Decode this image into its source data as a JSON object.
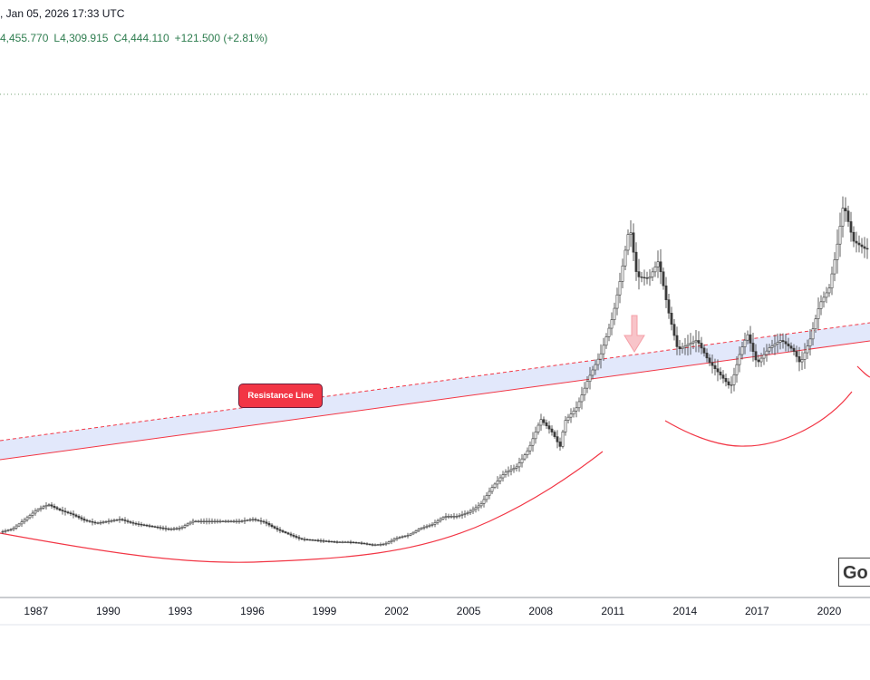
{
  "header": {
    "datetime": ", Jan 05, 2026 17:33 UTC",
    "high": "4,455.770",
    "low": "L4,309.915",
    "close": "C4,444.110",
    "change": "+121.500 (+2.81%)"
  },
  "colors": {
    "up": "#2e7d4f",
    "resistance": "#f23645",
    "band": "#dfe6fb",
    "candle": "#3a3a3a",
    "axis": "#131722"
  },
  "annotations": {
    "resistance_label": "Resistance Line",
    "watermark": "Go"
  },
  "chart_data": {
    "type": "candlestick",
    "title": "",
    "x_axis": {
      "tick_labels": [
        "1987",
        "1990",
        "1993",
        "1996",
        "1999",
        "2002",
        "2005",
        "2008",
        "2011",
        "2014",
        "2017",
        "2020"
      ],
      "range": [
        1985.5,
        2021.7
      ]
    },
    "y_axis": {
      "range": [
        0,
        2650
      ],
      "tick_labels": []
    },
    "price_trace": [
      [
        1985.5,
        330
      ],
      [
        1986.0,
        345
      ],
      [
        1986.5,
        390
      ],
      [
        1987.0,
        440
      ],
      [
        1987.5,
        470
      ],
      [
        1988.0,
        440
      ],
      [
        1988.5,
        420
      ],
      [
        1989.0,
        390
      ],
      [
        1989.5,
        375
      ],
      [
        1990.0,
        385
      ],
      [
        1990.5,
        395
      ],
      [
        1991.0,
        375
      ],
      [
        1991.5,
        365
      ],
      [
        1992.0,
        355
      ],
      [
        1992.5,
        345
      ],
      [
        1993.0,
        350
      ],
      [
        1993.5,
        385
      ],
      [
        1994.0,
        385
      ],
      [
        1994.5,
        385
      ],
      [
        1995.0,
        385
      ],
      [
        1995.5,
        385
      ],
      [
        1996.0,
        395
      ],
      [
        1996.5,
        380
      ],
      [
        1997.0,
        345
      ],
      [
        1997.5,
        320
      ],
      [
        1998.0,
        295
      ],
      [
        1998.5,
        290
      ],
      [
        1999.0,
        285
      ],
      [
        1999.5,
        280
      ],
      [
        2000.0,
        280
      ],
      [
        2000.5,
        275
      ],
      [
        2001.0,
        265
      ],
      [
        2001.5,
        270
      ],
      [
        2002.0,
        300
      ],
      [
        2002.5,
        315
      ],
      [
        2003.0,
        350
      ],
      [
        2003.5,
        370
      ],
      [
        2004.0,
        410
      ],
      [
        2004.5,
        410
      ],
      [
        2005.0,
        430
      ],
      [
        2005.5,
        470
      ],
      [
        2006.0,
        560
      ],
      [
        2006.5,
        630
      ],
      [
        2007.0,
        660
      ],
      [
        2007.5,
        750
      ],
      [
        2008.0,
        900
      ],
      [
        2008.5,
        830
      ],
      [
        2008.8,
        760
      ],
      [
        2009.0,
        890
      ],
      [
        2009.5,
        960
      ],
      [
        2010.0,
        1110
      ],
      [
        2010.5,
        1230
      ],
      [
        2011.0,
        1420
      ],
      [
        2011.3,
        1600
      ],
      [
        2011.7,
        1880
      ],
      [
        2012.0,
        1620
      ],
      [
        2012.5,
        1610
      ],
      [
        2012.9,
        1700
      ],
      [
        2013.3,
        1450
      ],
      [
        2013.7,
        1250
      ],
      [
        2014.0,
        1270
      ],
      [
        2014.5,
        1300
      ],
      [
        2015.0,
        1190
      ],
      [
        2015.5,
        1120
      ],
      [
        2015.9,
        1060
      ],
      [
        2016.3,
        1240
      ],
      [
        2016.6,
        1330
      ],
      [
        2017.0,
        1180
      ],
      [
        2017.5,
        1260
      ],
      [
        2018.0,
        1300
      ],
      [
        2018.5,
        1250
      ],
      [
        2018.8,
        1180
      ],
      [
        2019.2,
        1300
      ],
      [
        2019.6,
        1480
      ],
      [
        2020.0,
        1560
      ],
      [
        2020.3,
        1750
      ],
      [
        2020.6,
        1990
      ],
      [
        2021.0,
        1800
      ],
      [
        2021.5,
        1760
      ]
    ],
    "resistance_line": {
      "label": "Resistance Line",
      "upper_dashed": true,
      "lower_solid": true,
      "fill": "band"
    },
    "arcs": [
      "long-term cup 1985-2010",
      "cup 2013-2020"
    ],
    "marker": {
      "type": "down-arrow",
      "at": "2011 peak"
    }
  }
}
